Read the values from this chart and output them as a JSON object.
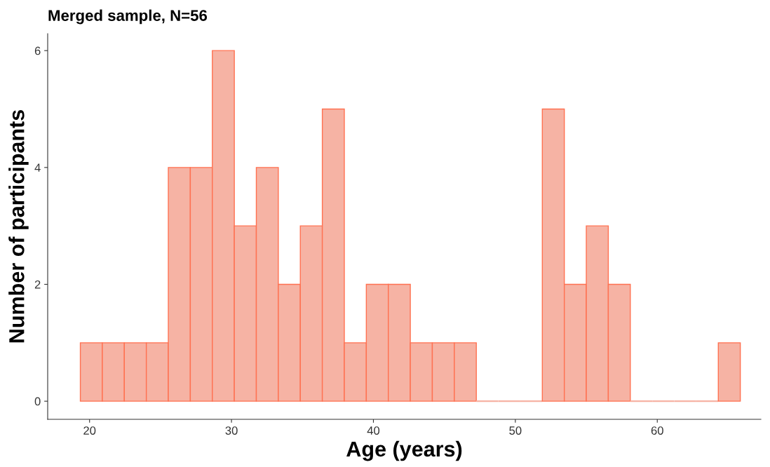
{
  "chart_data": {
    "type": "histogram",
    "title": "Merged sample, N=56",
    "xlabel": "Age (years)",
    "ylabel": "Number of participants",
    "bins": [
      19.35,
      20.9,
      22.45,
      24.0,
      25.55,
      27.1,
      28.65,
      30.2,
      31.75,
      33.3,
      34.85,
      36.4,
      37.95,
      39.5,
      41.05,
      42.6,
      44.15,
      45.7,
      47.25,
      48.8,
      50.35,
      51.9,
      53.45,
      55.0,
      56.55,
      58.1,
      59.65,
      61.2,
      62.75,
      64.3,
      65.85
    ],
    "values": [
      1,
      1,
      1,
      1,
      4,
      4,
      6,
      3,
      4,
      2,
      3,
      5,
      1,
      2,
      2,
      1,
      1,
      1,
      0,
      0,
      0,
      5,
      2,
      3,
      2,
      0,
      0,
      0,
      0,
      1
    ],
    "color": "#f6b3a4",
    "xlim": [
      17.05,
      67.3
    ],
    "xticks": [
      20,
      30,
      40,
      50,
      60
    ],
    "ylim": [
      -0.31,
      6.29
    ],
    "yticks": [
      0,
      2,
      4,
      6
    ],
    "grid": false
  }
}
